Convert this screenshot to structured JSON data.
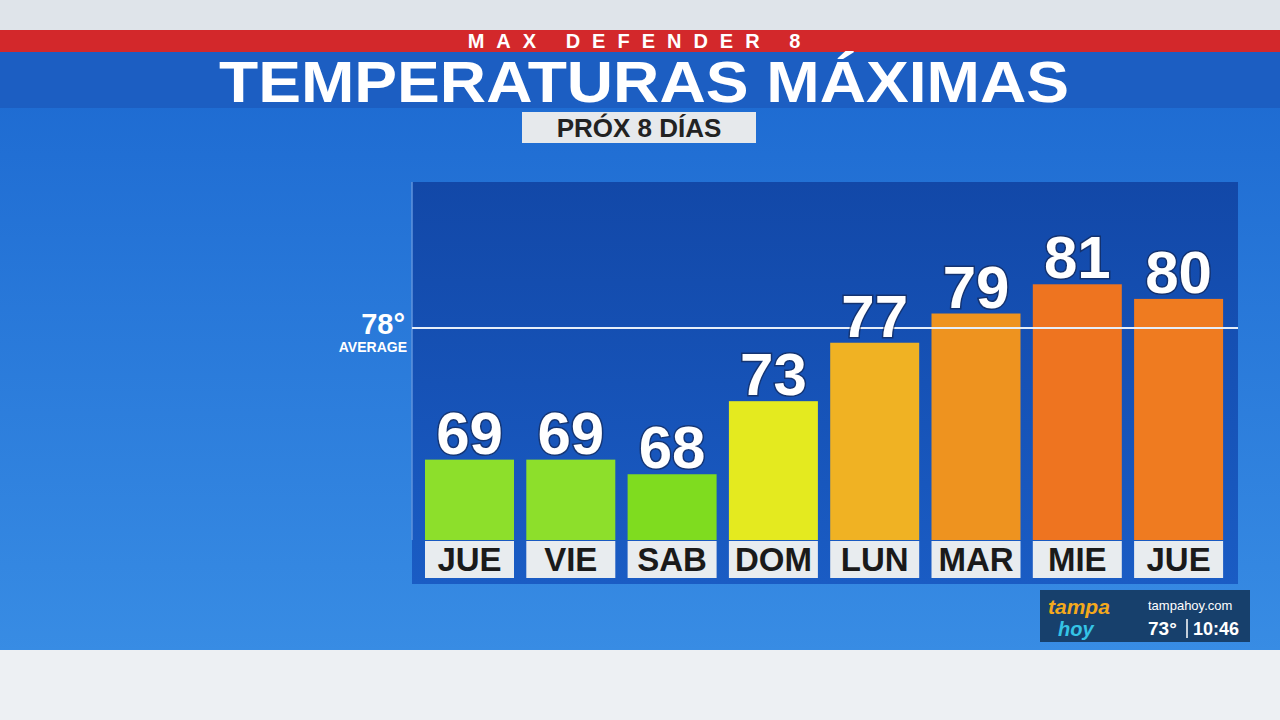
{
  "chart_data": {
    "type": "bar",
    "header": "MAX DEFENDER 8",
    "title": "TEMPERATURAS MÁXIMAS",
    "subtitle": "PRÓX 8 DÍAS",
    "categories": [
      "JUE",
      "VIE",
      "SAB",
      "DOM",
      "LUN",
      "MAR",
      "MIE",
      "JUE"
    ],
    "values": [
      69,
      69,
      68,
      73,
      77,
      79,
      81,
      80
    ],
    "colors": [
      "#8ddf2b",
      "#8ddf2b",
      "#7fdc1f",
      "#e4ea1f",
      "#f0b223",
      "#ee931f",
      "#ee7420",
      "#ef7b20"
    ],
    "ylim": [
      63.5,
      88
    ],
    "yticks": [],
    "tick_labels": "x",
    "data_labels": true,
    "reference_line": {
      "value": 78,
      "label": "78°",
      "note": "AVERAGE"
    }
  },
  "station": {
    "brand": [
      "tampa",
      "hoy"
    ],
    "website": "tampahoy.com",
    "temperature": "73°",
    "time": "10:46"
  }
}
